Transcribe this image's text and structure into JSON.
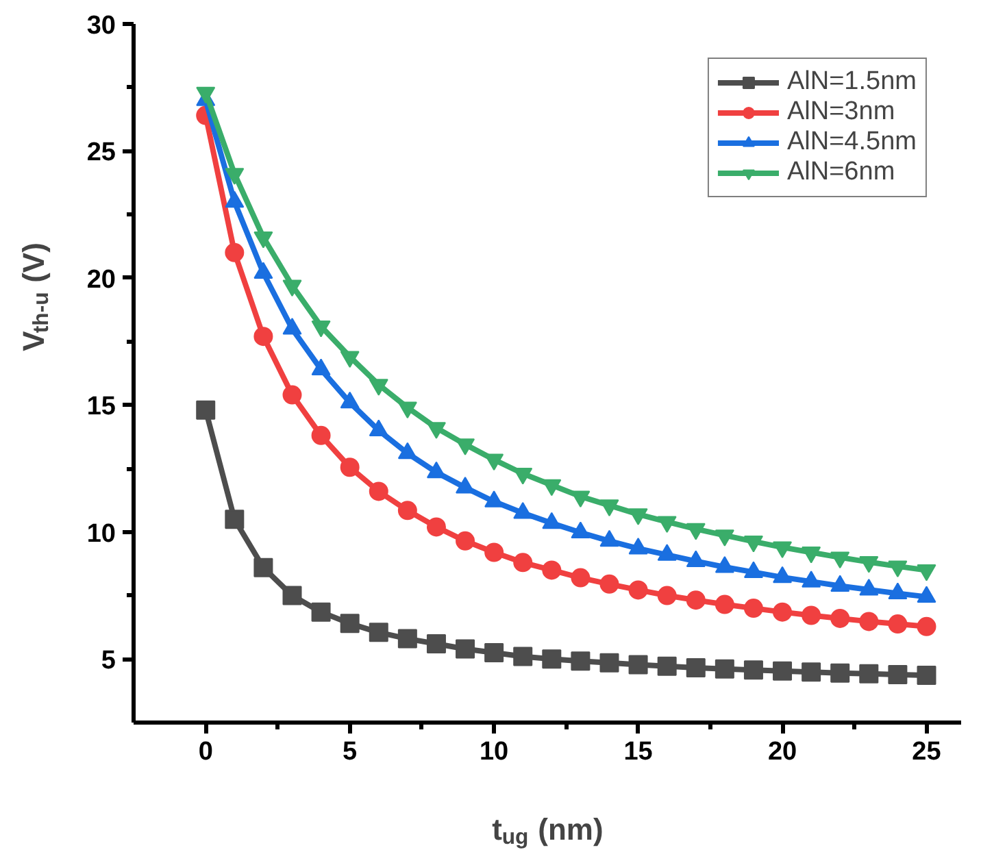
{
  "chart_data": {
    "type": "line",
    "xlabel": "t$_{ug}$ (nm)",
    "ylabel": "V$_{th-u}$ (V)",
    "x": [
      0,
      1,
      2,
      3,
      4,
      5,
      6,
      7,
      8,
      9,
      10,
      11,
      12,
      13,
      14,
      15,
      16,
      17,
      18,
      19,
      20,
      21,
      22,
      23,
      24,
      25
    ],
    "series": [
      {
        "name": "AlN=1.5nm",
        "color": "#4d4d4d",
        "marker": "square",
        "values": [
          14.8,
          10.5,
          8.6,
          7.5,
          6.85,
          6.4,
          6.05,
          5.8,
          5.6,
          5.4,
          5.25,
          5.1,
          5.0,
          4.92,
          4.85,
          4.78,
          4.72,
          4.66,
          4.61,
          4.57,
          4.53,
          4.49,
          4.45,
          4.42,
          4.39,
          4.36
        ]
      },
      {
        "name": "AlN=3nm",
        "color": "#f04040",
        "marker": "circle",
        "values": [
          26.4,
          21.0,
          17.7,
          15.4,
          13.8,
          12.55,
          11.6,
          10.85,
          10.2,
          9.65,
          9.2,
          8.8,
          8.5,
          8.2,
          7.95,
          7.72,
          7.5,
          7.32,
          7.15,
          7.0,
          6.85,
          6.72,
          6.6,
          6.48,
          6.38,
          6.28
        ]
      },
      {
        "name": "AlN=4.5nm",
        "color": "#1a6fe0",
        "marker": "triangle",
        "values": [
          27.0,
          23.0,
          20.2,
          18.0,
          16.4,
          15.1,
          14.0,
          13.1,
          12.35,
          11.75,
          11.2,
          10.75,
          10.35,
          9.98,
          9.65,
          9.35,
          9.1,
          8.85,
          8.62,
          8.42,
          8.22,
          8.05,
          7.88,
          7.73,
          7.58,
          7.45
        ]
      },
      {
        "name": "AlN=6nm",
        "color": "#3aad6a",
        "marker": "triangle_down",
        "values": [
          27.3,
          24.1,
          21.6,
          19.7,
          18.1,
          16.9,
          15.8,
          14.9,
          14.1,
          13.45,
          12.85,
          12.3,
          11.85,
          11.4,
          11.05,
          10.7,
          10.4,
          10.12,
          9.87,
          9.63,
          9.4,
          9.2,
          9.0,
          8.82,
          8.65,
          8.5
        ]
      }
    ],
    "xlim": [
      -2.5,
      26.2
    ],
    "ylim": [
      2.5,
      30
    ],
    "xticks": [
      0,
      5,
      10,
      15,
      20,
      25
    ],
    "yticks": [
      5,
      10,
      15,
      20,
      25,
      30
    ],
    "legend": "top right",
    "grid": false,
    "line_style": "solid"
  }
}
